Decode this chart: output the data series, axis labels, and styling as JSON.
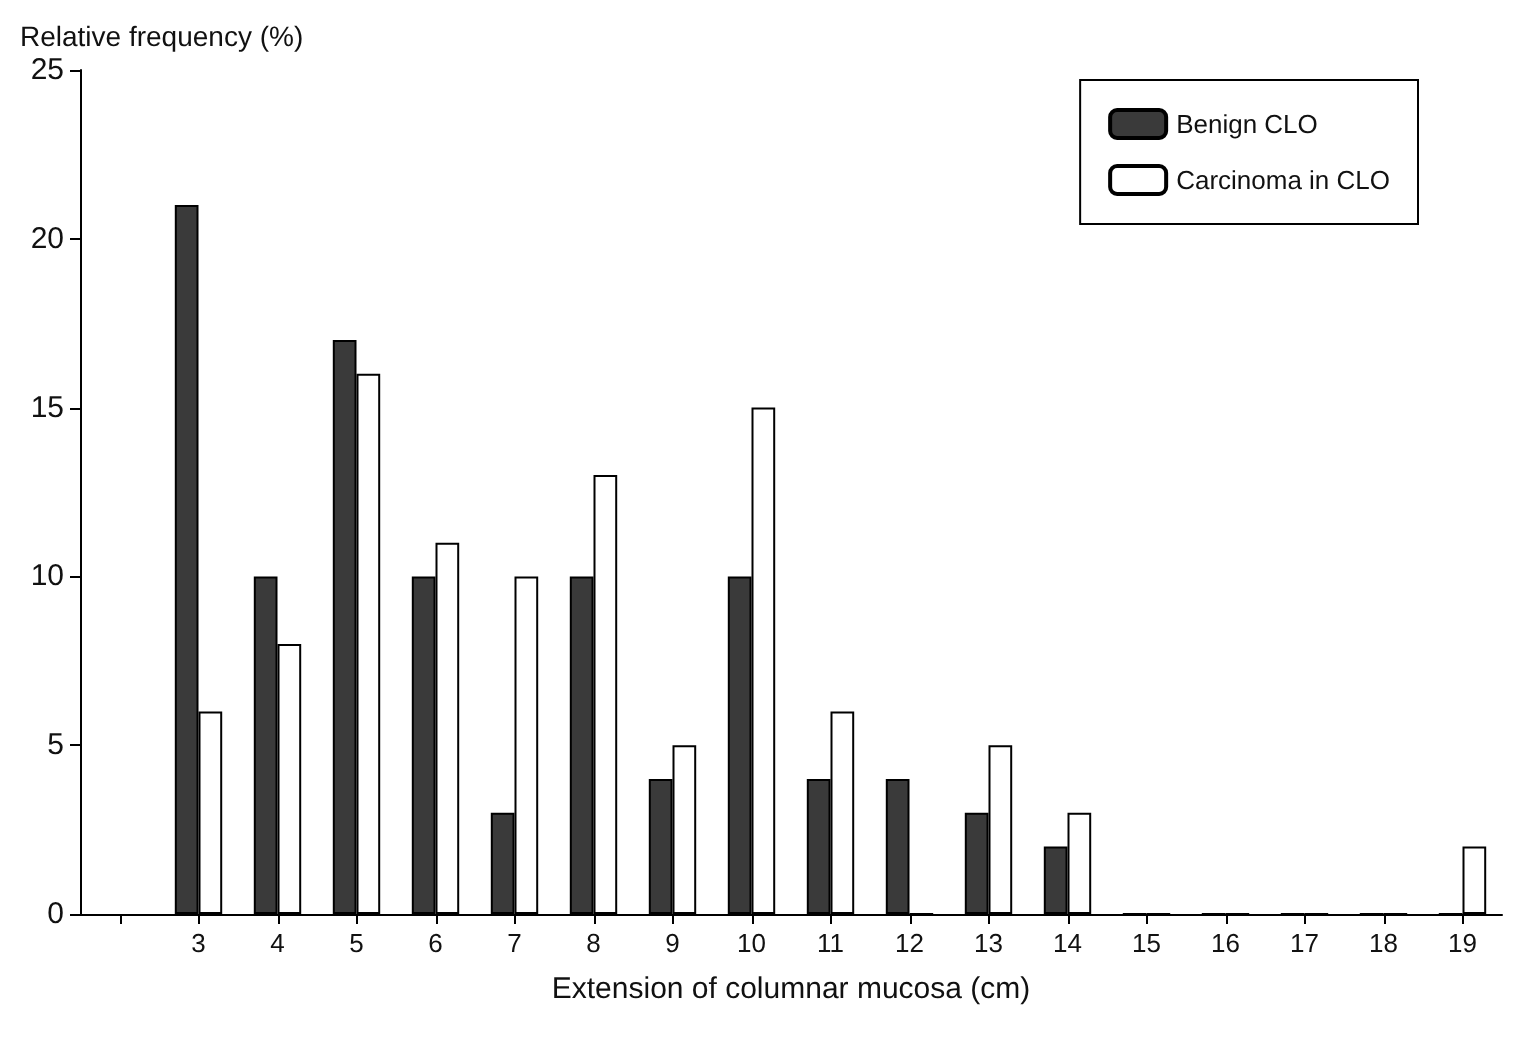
{
  "chart_data": {
    "type": "bar",
    "xlabel": "Extension of columnar mucosa (cm)",
    "ylabel": "Relative frequency (%)",
    "categories": [
      null,
      "3",
      "4",
      "5",
      "6",
      "7",
      "8",
      "9",
      "10",
      "11",
      "12",
      "13",
      "14",
      "15",
      "16",
      "17",
      "18",
      "19"
    ],
    "series": [
      {
        "name": "Benign CLO",
        "color": "#3a3a3a",
        "values": [
          null,
          21,
          10,
          17,
          10,
          3,
          10,
          4,
          10,
          4,
          4,
          3,
          2,
          0,
          0,
          0,
          0,
          0
        ]
      },
      {
        "name": "Carcinoma in CLO",
        "color": "#ffffff",
        "values": [
          null,
          6,
          8,
          16,
          11,
          10,
          13,
          5,
          15,
          6,
          0,
          5,
          3,
          0,
          0,
          0,
          0,
          2
        ]
      }
    ],
    "ylim": [
      0,
      25
    ],
    "yticks": [
      0,
      5,
      10,
      15,
      20,
      25
    ],
    "grid": false,
    "legend": "top right"
  }
}
